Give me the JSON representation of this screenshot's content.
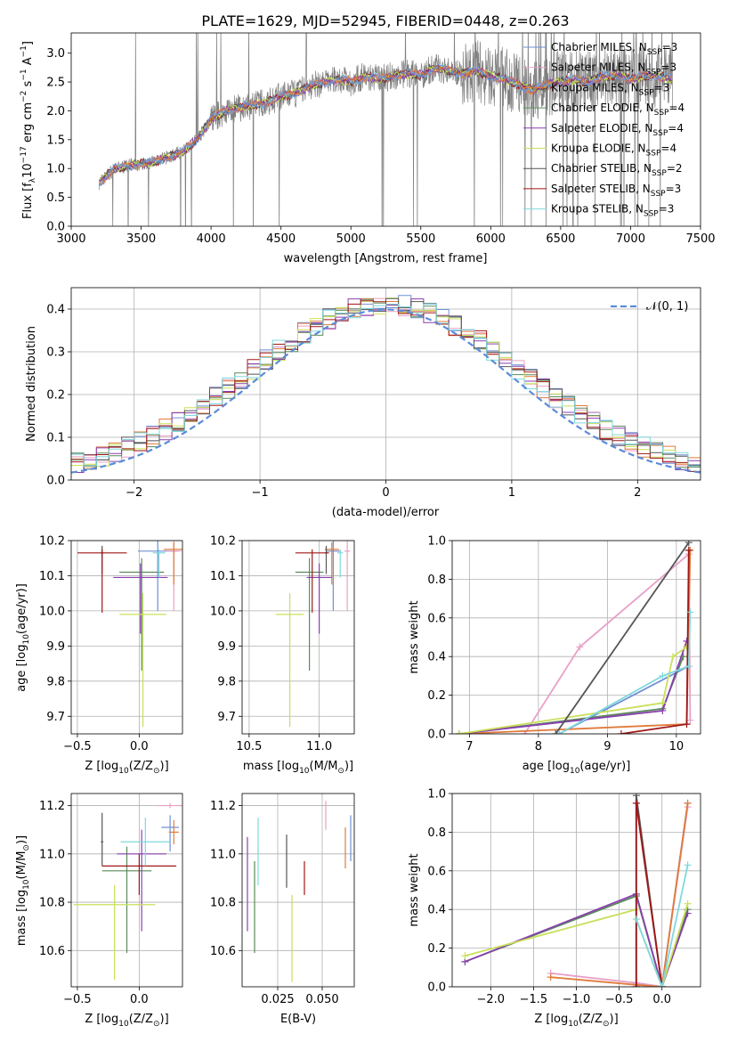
{
  "title": "PLATE=1629, MJD=52945, FIBERID=0448, z=0.263",
  "colors": {
    "chab_miles": "#6f8fd6",
    "salp_miles": "#e8a0c8",
    "krou_miles": "#e07b3a",
    "chab_elodie": "#5a8a5a",
    "salp_elodie": "#8a3fb0",
    "krou_elodie": "#c9e05a",
    "chab_stelib": "#555555",
    "salp_stelib": "#a01818",
    "krou_stelib": "#7fd8dc",
    "data": "#7f7f7f",
    "normal": "#5b8bd9",
    "grid": "#b0b0b0"
  },
  "chart_data": [
    {
      "id": "spectrum",
      "type": "line",
      "xlabel": "wavelength [Angstrom, rest frame]",
      "ylabel_main": "Flux [f",
      "ylabel_sub": "λ",
      "ylabel_rest": "10",
      "ylabel_sup1": "−17",
      "ylabel_units": " erg cm",
      "ylabel_sup2": "−2",
      "ylabel_s": " s",
      "ylabel_sup3": "−1",
      "ylabel_A": " A",
      "ylabel_sup4": "−1",
      "ylabel_end": "]",
      "xlim": [
        3000,
        7500
      ],
      "ylim": [
        0,
        3.35
      ],
      "xticks": [
        "3000",
        "3500",
        "4000",
        "4500",
        "5000",
        "5500",
        "6000",
        "6500",
        "7000",
        "7500"
      ],
      "yticks": [
        "0.0",
        "0.5",
        "1.0",
        "1.5",
        "2.0",
        "2.5",
        "3.0"
      ],
      "continuum_x": [
        3200,
        3300,
        3400,
        3500,
        3600,
        3700,
        3800,
        3900,
        4000,
        4100,
        4200,
        4300,
        4400,
        4500,
        4600,
        4700,
        4800,
        4900,
        5000,
        5100,
        5200,
        5300,
        5400,
        5500,
        5600,
        5700,
        5800,
        5900,
        6000,
        6100,
        6200,
        6300,
        6400,
        6500,
        6600,
        6700,
        6800,
        6900,
        7000,
        7100,
        7200,
        7300
      ],
      "continuum_y": [
        0.75,
        0.98,
        1.05,
        1.08,
        1.12,
        1.2,
        1.3,
        1.5,
        1.85,
        2.0,
        2.05,
        2.1,
        2.15,
        2.25,
        2.3,
        2.42,
        2.48,
        2.55,
        2.5,
        2.6,
        2.55,
        2.6,
        2.65,
        2.62,
        2.75,
        2.7,
        2.65,
        2.7,
        2.6,
        2.55,
        2.45,
        2.35,
        2.45,
        2.5,
        2.55,
        2.5,
        2.6,
        2.62,
        2.55,
        2.6,
        2.6,
        2.55
      ],
      "legend": [
        {
          "label": "Chabrier MILES, N",
          "sub": "SSP",
          "tail": "=3",
          "color": "chab_miles"
        },
        {
          "label": "Salpeter MILES, N",
          "sub": "SSP",
          "tail": "=3",
          "color": "salp_miles"
        },
        {
          "label": "Kroupa MILES, N",
          "sub": "SSP",
          "tail": "=3",
          "color": "krou_miles"
        },
        {
          "label": "Chabrier ELODIE, N",
          "sub": "SSP",
          "tail": "=4",
          "color": "chab_elodie"
        },
        {
          "label": "Salpeter ELODIE, N",
          "sub": "SSP",
          "tail": "=4",
          "color": "salp_elodie"
        },
        {
          "label": "Kroupa ELODIE, N",
          "sub": "SSP",
          "tail": "=4",
          "color": "krou_elodie"
        },
        {
          "label": "Chabrier STELIB, N",
          "sub": "SSP",
          "tail": "=2",
          "color": "chab_stelib"
        },
        {
          "label": "Salpeter STELIB, N",
          "sub": "SSP",
          "tail": "=3",
          "color": "salp_stelib"
        },
        {
          "label": "Kroupa STELIB, N",
          "sub": "SSP",
          "tail": "=3",
          "color": "krou_stelib"
        }
      ]
    },
    {
      "id": "residuals",
      "type": "step",
      "xlabel": "(data-model)/error",
      "ylabel": "Normed distribution",
      "xlim": [
        -2.5,
        2.5
      ],
      "ylim": [
        0,
        0.45
      ],
      "xticks": [
        "−2",
        "−1",
        "0",
        "1",
        "2"
      ],
      "yticks": [
        "0.0",
        "0.1",
        "0.2",
        "0.3",
        "0.4"
      ],
      "legend_label": "𝒩(0, 1)"
    },
    {
      "id": "age_vs_z",
      "type": "error-bars",
      "xlabel": "Z [log",
      "xlabel_sub": "10",
      "xlabel_rest": "(Z/Z",
      "xlabel_sub2": "⊙",
      "xlabel_end": ")]",
      "ylabel": "age  [log",
      "ylabel_sub": "10",
      "ylabel_rest": "(age/yr)]",
      "xlim": [
        -0.55,
        0.35
      ],
      "ylim": [
        9.65,
        10.2
      ],
      "xticks": [
        [
          "−0.5",
          -0.5
        ],
        [
          "0.0",
          0.0
        ]
      ],
      "yticks": [
        [
          "9.7",
          9.7
        ],
        [
          "9.8",
          9.8
        ],
        [
          "9.9",
          9.9
        ],
        [
          "10.0",
          10.0
        ],
        [
          "10.1",
          10.1
        ],
        [
          "10.2",
          10.2
        ]
      ],
      "points": [
        {
          "x": 0.15,
          "y": 10.17,
          "xe": 0.16,
          "ye": [
            0.17,
            0.03
          ],
          "c": "chab_miles"
        },
        {
          "x": 0.28,
          "y": 10.17,
          "xe": 0.06,
          "ye": [
            0.17,
            0.03
          ],
          "c": "salp_miles"
        },
        {
          "x": 0.28,
          "y": 10.175,
          "xe": 0.08,
          "ye": [
            0.1,
            0.02
          ],
          "c": "krou_miles"
        },
        {
          "x": 0.02,
          "y": 10.11,
          "xe": 0.18,
          "ye": [
            0.28,
            0.04
          ],
          "c": "chab_elodie"
        },
        {
          "x": 0.01,
          "y": 10.095,
          "xe": 0.22,
          "ye": [
            0.16,
            0.04
          ],
          "c": "salp_elodie"
        },
        {
          "x": 0.03,
          "y": 9.99,
          "xe": 0.19,
          "ye": [
            0.32,
            0.06
          ],
          "c": "krou_elodie"
        },
        {
          "x": -0.3,
          "y": 10.165,
          "xe": 0.01,
          "ye": [
            0.06,
            0.02
          ],
          "c": "chab_stelib"
        },
        {
          "x": -0.3,
          "y": 10.165,
          "xe": 0.2,
          "ye": [
            0.17,
            0.01
          ],
          "c": "salp_stelib"
        },
        {
          "x": 0.16,
          "y": 10.165,
          "xe": 0.05,
          "ye": [
            0.07,
            0.01
          ],
          "c": "krou_stelib"
        }
      ]
    },
    {
      "id": "age_vs_mass",
      "type": "error-bars",
      "xlabel": "mass [log",
      "xlabel_sub": "10",
      "xlabel_rest": "(M/M",
      "xlabel_sub2": "⊙",
      "xlabel_end": ")]",
      "xlim": [
        10.45,
        11.25
      ],
      "ylim": [
        9.65,
        10.2
      ],
      "xticks": [
        [
          "10.5",
          10.5
        ],
        [
          "11.0",
          11.0
        ]
      ],
      "yticks": [
        [
          "9.7",
          9.7
        ],
        [
          "9.8",
          9.8
        ],
        [
          "9.9",
          9.9
        ],
        [
          "10.0",
          10.0
        ],
        [
          "10.1",
          10.1
        ],
        [
          "10.2",
          10.2
        ]
      ],
      "points": [
        {
          "x": 11.1,
          "y": 10.17,
          "xe": 0.05,
          "ye": [
            0.17,
            0.03
          ],
          "c": "chab_miles"
        },
        {
          "x": 11.2,
          "y": 10.17,
          "xe": 0.02,
          "ye": [
            0.17,
            0.03
          ],
          "c": "salp_miles"
        },
        {
          "x": 11.09,
          "y": 10.175,
          "xe": 0.05,
          "ye": [
            0.1,
            0.02
          ],
          "c": "krou_miles"
        },
        {
          "x": 10.93,
          "y": 10.11,
          "xe": 0.1,
          "ye": [
            0.28,
            0.04
          ],
          "c": "chab_elodie"
        },
        {
          "x": 11.0,
          "y": 10.095,
          "xe": 0.09,
          "ye": [
            0.16,
            0.04
          ],
          "c": "salp_elodie"
        },
        {
          "x": 10.79,
          "y": 9.99,
          "xe": 0.1,
          "ye": [
            0.32,
            0.06
          ],
          "c": "krou_elodie"
        },
        {
          "x": 11.05,
          "y": 10.165,
          "xe": 0.01,
          "ye": [
            0.06,
            0.02
          ],
          "c": "chab_stelib"
        },
        {
          "x": 10.95,
          "y": 10.165,
          "xe": 0.12,
          "ye": [
            0.17,
            0.01
          ],
          "c": "salp_stelib"
        },
        {
          "x": 11.15,
          "y": 10.165,
          "xe": 0.02,
          "ye": [
            0.07,
            0.01
          ],
          "c": "krou_stelib"
        }
      ]
    },
    {
      "id": "mass_weight_vs_age",
      "type": "line",
      "xlabel": "age  [log",
      "xlabel_sub": "10",
      "xlabel_rest": "(age/yr)]",
      "ylabel": "mass weight",
      "xlim": [
        6.75,
        10.35
      ],
      "ylim": [
        0,
        1
      ],
      "xticks": [
        [
          "7",
          7
        ],
        [
          "8",
          8
        ],
        [
          "9",
          9
        ],
        [
          "10",
          10
        ]
      ],
      "yticks": [
        [
          "0.0",
          0
        ],
        [
          "0.2",
          0.2
        ],
        [
          "0.4",
          0.4
        ],
        [
          "0.6",
          0.6
        ],
        [
          "0.8",
          0.8
        ],
        [
          "1.0",
          1.0
        ]
      ],
      "series": [
        {
          "c": "chab_miles",
          "x": [
            8.3,
            10.18,
            10.18
          ],
          "y": [
            0.0,
            0.35,
            0.95
          ]
        },
        {
          "c": "salp_miles",
          "x": [
            7.8,
            8.6,
            10.18,
            10.2
          ],
          "y": [
            0.0,
            0.45,
            0.93,
            0.07
          ]
        },
        {
          "c": "krou_miles",
          "x": [
            6.85,
            10.15,
            10.2
          ],
          "y": [
            0.0,
            0.05,
            0.95
          ]
        },
        {
          "c": "chab_elodie",
          "x": [
            6.85,
            9.8,
            10.1
          ],
          "y": [
            0.0,
            0.13,
            0.4
          ]
        },
        {
          "c": "salp_elodie",
          "x": [
            6.85,
            9.8,
            10.15
          ],
          "y": [
            0.0,
            0.12,
            0.48
          ]
        },
        {
          "c": "krou_elodie",
          "x": [
            6.85,
            9.8,
            9.95,
            10.15
          ],
          "y": [
            0.0,
            0.16,
            0.4,
            0.45
          ]
        },
        {
          "c": "chab_stelib",
          "x": [
            8.25,
            10.18
          ],
          "y": [
            0.0,
            0.99
          ]
        },
        {
          "c": "salp_stelib",
          "x": [
            9.2,
            10.15,
            10.18
          ],
          "y": [
            0.0,
            0.05,
            0.95
          ]
        },
        {
          "c": "krou_stelib",
          "x": [
            8.3,
            9.8,
            10.18,
            10.2
          ],
          "y": [
            0.0,
            0.3,
            0.35,
            0.63
          ]
        }
      ]
    },
    {
      "id": "mass_vs_z",
      "type": "error-bars",
      "xlabel": "Z [log",
      "xlabel_sub": "10",
      "xlabel_rest": "(Z/Z",
      "xlabel_sub2": "⊙",
      "xlabel_end": ")]",
      "ylabel": "mass [log",
      "ylabel_sub": "10",
      "ylabel_rest": "(M/M",
      "ylabel_sub2": "⊙",
      "ylabel_end": ")]",
      "xlim": [
        -0.55,
        0.35
      ],
      "ylim": [
        10.45,
        11.25
      ],
      "xticks": [
        [
          "−0.5",
          -0.5
        ],
        [
          "0.0",
          0.0
        ]
      ],
      "yticks": [
        [
          "10.6",
          10.6
        ],
        [
          "10.8",
          10.8
        ],
        [
          "11.0",
          11.0
        ],
        [
          "11.2",
          11.2
        ]
      ],
      "points": [
        {
          "x": 0.25,
          "y": 11.11,
          "xe": 0.07,
          "ye": [
            0.1,
            0.05
          ],
          "c": "chab_miles"
        },
        {
          "x": 0.25,
          "y": 11.2,
          "xe": 0.1,
          "ye": [
            0.01,
            0.01
          ],
          "c": "salp_miles"
        },
        {
          "x": 0.28,
          "y": 11.09,
          "xe": 0.04,
          "ye": [
            0.05,
            0.05
          ],
          "c": "krou_miles"
        },
        {
          "x": -0.1,
          "y": 10.93,
          "xe": 0.2,
          "ye": [
            0.34,
            0.1
          ],
          "c": "chab_elodie"
        },
        {
          "x": 0.02,
          "y": 11.0,
          "xe": 0.2,
          "ye": [
            0.32,
            0.1
          ],
          "c": "salp_elodie"
        },
        {
          "x": -0.2,
          "y": 10.79,
          "xe": 0.33,
          "ye": [
            0.31,
            0.08
          ],
          "c": "krou_elodie"
        },
        {
          "x": -0.3,
          "y": 11.05,
          "xe": 0.01,
          "ye": [
            0.1,
            0.12
          ],
          "c": "chab_stelib"
        },
        {
          "x": 0.0,
          "y": 10.95,
          "xe": 0.3,
          "ye": [
            0.12,
            0.05
          ],
          "c": "salp_stelib"
        },
        {
          "x": 0.05,
          "y": 11.05,
          "xe": 0.2,
          "ye": [
            0.1,
            0.1
          ],
          "c": "krou_stelib"
        }
      ]
    },
    {
      "id": "mass_vs_ebv",
      "type": "error-bars",
      "xlabel": "E(B-V)",
      "xlim": [
        0.005,
        0.068
      ],
      "ylim": [
        10.45,
        11.25
      ],
      "xticks": [
        [
          "0.025",
          0.025
        ],
        [
          "0.050",
          0.05
        ]
      ],
      "yticks": [
        [
          "10.6",
          10.6
        ],
        [
          "10.8",
          10.8
        ],
        [
          "11.0",
          11.0
        ],
        [
          "11.2",
          11.2
        ]
      ],
      "points": [
        {
          "x": 0.066,
          "y": 11.06,
          "ye": [
            0.09,
            0.1
          ],
          "c": "chab_miles"
        },
        {
          "x": 0.052,
          "y": 11.16,
          "ye": [
            0.06,
            0.06
          ],
          "c": "salp_miles"
        },
        {
          "x": 0.063,
          "y": 11.03,
          "ye": [
            0.09,
            0.08
          ],
          "c": "krou_miles"
        },
        {
          "x": 0.012,
          "y": 10.78,
          "ye": [
            0.19,
            0.19
          ],
          "c": "chab_elodie"
        },
        {
          "x": 0.008,
          "y": 10.89,
          "ye": [
            0.21,
            0.18
          ],
          "c": "salp_elodie"
        },
        {
          "x": 0.014,
          "y": 11.01,
          "ye": [
            0.14,
            0.14
          ],
          "c": "krou_stelib"
        },
        {
          "x": 0.03,
          "y": 10.97,
          "ye": [
            0.11,
            0.11
          ],
          "c": "chab_stelib"
        },
        {
          "x": 0.04,
          "y": 10.9,
          "ye": [
            0.07,
            0.07
          ],
          "c": "salp_stelib"
        },
        {
          "x": 0.033,
          "y": 10.65,
          "ye": [
            0.18,
            0.18
          ],
          "c": "krou_elodie"
        }
      ]
    },
    {
      "id": "mass_weight_vs_z",
      "type": "line",
      "xlabel": "Z [log",
      "xlabel_sub": "10",
      "xlabel_rest": "(Z/Z",
      "xlabel_sub2": "⊙",
      "xlabel_end": ")]",
      "ylabel": "mass weight",
      "xlim": [
        -2.45,
        0.45
      ],
      "ylim": [
        0,
        1
      ],
      "xticks": [
        [
          "−2.0",
          -2
        ],
        [
          "−1.5",
          -1.5
        ],
        [
          "−1.0",
          -1
        ],
        [
          "−0.5",
          -0.5
        ],
        [
          "0.0",
          0
        ]
      ],
      "yticks": [
        [
          "0.0",
          0
        ],
        [
          "0.2",
          0.2
        ],
        [
          "0.4",
          0.4
        ],
        [
          "0.6",
          0.6
        ],
        [
          "0.8",
          0.8
        ],
        [
          "1.0",
          1.0
        ]
      ],
      "series": [
        {
          "c": "chab_miles",
          "x": [
            -0.3,
            0.0,
            0.3
          ],
          "y": [
            0.02,
            0.0,
            0.95
          ]
        },
        {
          "c": "salp_miles",
          "x": [
            -1.3,
            -0.3,
            0.0,
            0.3
          ],
          "y": [
            0.07,
            0.02,
            0.0,
            0.93
          ]
        },
        {
          "c": "krou_miles",
          "x": [
            -1.3,
            -0.3,
            0.0,
            0.3
          ],
          "y": [
            0.05,
            0.01,
            0.0,
            0.95
          ]
        },
        {
          "c": "chab_elodie",
          "x": [
            -2.3,
            -0.3,
            0.0,
            0.3
          ],
          "y": [
            0.13,
            0.47,
            0.0,
            0.4
          ]
        },
        {
          "c": "salp_elodie",
          "x": [
            -2.3,
            -0.3,
            0.0,
            0.3
          ],
          "y": [
            0.13,
            0.48,
            0.0,
            0.38
          ]
        },
        {
          "c": "krou_elodie",
          "x": [
            -2.3,
            -0.3,
            -0.3,
            0.0,
            0.3
          ],
          "y": [
            0.16,
            0.4,
            0.35,
            0.0,
            0.43
          ]
        },
        {
          "c": "chab_stelib",
          "x": [
            -0.3,
            -0.3,
            0.0
          ],
          "y": [
            0.0,
            0.99,
            0.0
          ]
        },
        {
          "c": "salp_stelib",
          "x": [
            -0.3,
            -0.3,
            0.0
          ],
          "y": [
            0.0,
            0.95,
            0.0
          ]
        },
        {
          "c": "krou_stelib",
          "x": [
            -0.3,
            0.0,
            0.3
          ],
          "y": [
            0.35,
            0.0,
            0.63
          ]
        }
      ]
    }
  ]
}
